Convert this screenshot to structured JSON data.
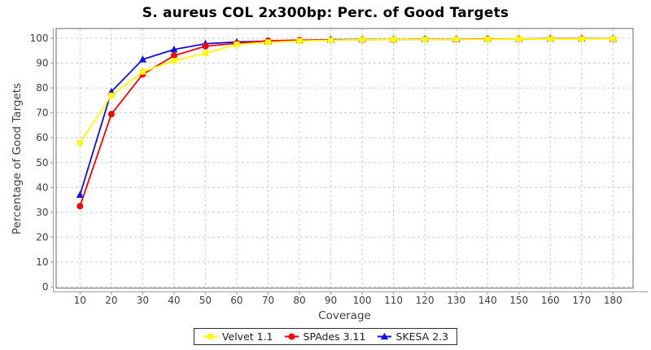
{
  "title": "S. aureus COL 2x300bp: Perc. of Good Targets",
  "chart_data": {
    "type": "line",
    "x": [
      10,
      20,
      30,
      40,
      50,
      60,
      70,
      80,
      90,
      100,
      110,
      120,
      130,
      140,
      150,
      160,
      170,
      180
    ],
    "series": [
      {
        "name": "Velvet 1.1",
        "color": "#FFFF00",
        "marker": "square",
        "values": [
          58,
          77,
          86.5,
          91,
          94,
          97.5,
          98.4,
          98.9,
          99.2,
          99.4,
          99.5,
          99.5,
          99.6,
          99.6,
          99.7,
          99.7,
          99.7,
          99.8
        ]
      },
      {
        "name": "SPAdes 3.11",
        "color": "#FF0000",
        "marker": "circle",
        "values": [
          32.5,
          69.5,
          85.5,
          93,
          96.8,
          98,
          99,
          99.2,
          99.3,
          99.4,
          99.5,
          99.6,
          99.6,
          99.7,
          99.7,
          99.8,
          99.8,
          99.8
        ]
      },
      {
        "name": "SKESA 2.3",
        "color": "#1010E0",
        "marker": "triangle",
        "values": [
          37,
          78.5,
          91.5,
          95.5,
          97.8,
          98.5,
          98.8,
          99.2,
          99.4,
          99.5,
          99.5,
          99.6,
          99.6,
          99.7,
          99.7,
          99.8,
          99.8,
          99.8
        ]
      }
    ],
    "xlabel": "Coverage",
    "ylabel": "Percentage of Good Targets",
    "xlim": [
      10,
      180
    ],
    "ylim": [
      0,
      100
    ],
    "x_ticks": [
      10,
      20,
      30,
      40,
      50,
      60,
      70,
      80,
      90,
      100,
      110,
      120,
      130,
      140,
      150,
      160,
      170,
      180
    ],
    "y_ticks": [
      0,
      10,
      20,
      30,
      40,
      50,
      60,
      70,
      80,
      90,
      100
    ],
    "grid": true,
    "legend_position": "bottom"
  },
  "colors": {
    "background": "#FFFFFF",
    "grid": "#CCCCCC",
    "plot_border": "#808080",
    "axis_line": "#ABABAB",
    "tick_label": "#3F3F3F",
    "axis_title": "#3F3F3F",
    "title": "#000000",
    "legend_border": "#2B2B2B",
    "legend_text": "#222222"
  }
}
